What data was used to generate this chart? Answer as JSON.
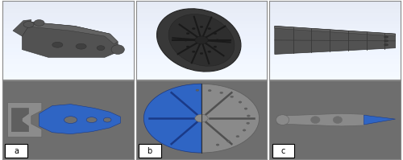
{
  "fig_width": 5.0,
  "fig_height": 1.99,
  "dpi": 100,
  "outer_bg": "#ffffff",
  "cell_border_color": "#888888",
  "cell_border_lw": 0.8,
  "top_bg_gradient_top": "#e8eff5",
  "top_bg_gradient_bot": "#c5d5e8",
  "top_bg": "#d8e5f0",
  "bottom_bg": "#6e6e6e",
  "label_bg": "#ffffff",
  "label_color": "#000000",
  "label_fontsize": 7,
  "blue_color": "#2f65c4",
  "grey_shape": "#8a8a8a",
  "part_color": "#555555",
  "part_edge": "#333333",
  "labels": [
    "a",
    "b",
    "c"
  ],
  "n_cols": 3,
  "n_rows": 2
}
